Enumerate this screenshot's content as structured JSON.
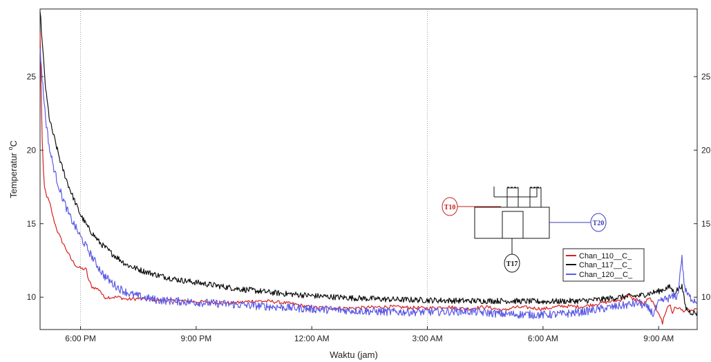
{
  "chart_data": {
    "type": "line",
    "title": "",
    "xlabel": "Waktu (jam)",
    "ylabel_text": "Temperatur",
    "ylabel_unit": "oC",
    "x_tick_labels": [
      "6:00 PM",
      "9:00 PM",
      "12:00 AM",
      "3:00 AM",
      "6:00 AM",
      "9:00 AM"
    ],
    "x_ticks_hours": [
      18,
      21,
      24,
      27,
      30,
      33
    ],
    "xlim_hours": [
      16.95,
      34.0
    ],
    "ylim": [
      7.8,
      29.6
    ],
    "y_tick_labels": [
      "10",
      "15",
      "20",
      "25"
    ],
    "y_ticks": [
      10,
      15,
      20,
      25
    ],
    "vertical_gridlines_hours": [
      18,
      27
    ],
    "legend_position": "lower-right",
    "series": [
      {
        "name": "Chan_110__C_",
        "color": "#d81e1e",
        "noise": 0.12,
        "points": [
          [
            16.95,
            28.0
          ],
          [
            17.0,
            21.0
          ],
          [
            17.05,
            17.6
          ],
          [
            17.12,
            16.9
          ],
          [
            17.2,
            16.4
          ],
          [
            17.3,
            15.3
          ],
          [
            17.4,
            14.5
          ],
          [
            17.5,
            13.9
          ],
          [
            17.6,
            13.4
          ],
          [
            17.75,
            12.6
          ],
          [
            17.9,
            12.1
          ],
          [
            18.0,
            11.95
          ],
          [
            18.15,
            11.9
          ],
          [
            18.2,
            11.2
          ],
          [
            18.3,
            10.7
          ],
          [
            18.5,
            10.5
          ],
          [
            18.6,
            10.0
          ],
          [
            19.0,
            10.0
          ],
          [
            19.2,
            9.85
          ],
          [
            19.5,
            9.9
          ],
          [
            20.0,
            9.8
          ],
          [
            21.0,
            9.7
          ],
          [
            22.0,
            9.6
          ],
          [
            22.5,
            9.75
          ],
          [
            23.0,
            9.7
          ],
          [
            23.5,
            9.55
          ],
          [
            24.0,
            9.3
          ],
          [
            25.0,
            9.25
          ],
          [
            25.5,
            9.3
          ],
          [
            26.0,
            9.35
          ],
          [
            26.5,
            9.3
          ],
          [
            27.0,
            9.25
          ],
          [
            27.5,
            9.35
          ],
          [
            28.0,
            9.2
          ],
          [
            28.5,
            9.35
          ],
          [
            29.0,
            9.1
          ],
          [
            29.2,
            9.3
          ],
          [
            29.6,
            9.3
          ],
          [
            30.0,
            9.2
          ],
          [
            30.5,
            9.4
          ],
          [
            31.0,
            9.35
          ],
          [
            31.5,
            9.6
          ],
          [
            32.0,
            9.8
          ],
          [
            32.2,
            10.2
          ],
          [
            32.3,
            9.9
          ],
          [
            32.5,
            9.8
          ],
          [
            32.6,
            9.5
          ],
          [
            32.7,
            9.8
          ],
          [
            32.8,
            9.9
          ],
          [
            32.9,
            9.3
          ],
          [
            33.0,
            9.0
          ],
          [
            33.1,
            8.2
          ],
          [
            33.15,
            8.8
          ],
          [
            33.25,
            9.4
          ],
          [
            33.3,
            9.5
          ],
          [
            33.35,
            8.9
          ],
          [
            33.4,
            9.2
          ],
          [
            33.5,
            9.3
          ],
          [
            33.6,
            9.1
          ],
          [
            34.0,
            9.1
          ]
        ]
      },
      {
        "name": "Chan_117__C_",
        "color": "#111111",
        "noise": 0.2,
        "points": [
          [
            16.95,
            29.6
          ],
          [
            17.0,
            27.5
          ],
          [
            17.1,
            24.0
          ],
          [
            17.2,
            22.0
          ],
          [
            17.35,
            20.5
          ],
          [
            17.5,
            19.0
          ],
          [
            17.7,
            17.5
          ],
          [
            17.9,
            16.2
          ],
          [
            18.0,
            15.6
          ],
          [
            18.2,
            14.7
          ],
          [
            18.5,
            13.7
          ],
          [
            18.8,
            13.0
          ],
          [
            19.2,
            12.2
          ],
          [
            19.6,
            11.8
          ],
          [
            20.0,
            11.5
          ],
          [
            20.5,
            11.2
          ],
          [
            21.0,
            11.0
          ],
          [
            22.0,
            10.6
          ],
          [
            23.0,
            10.3
          ],
          [
            24.0,
            10.1
          ],
          [
            25.0,
            9.95
          ],
          [
            26.0,
            9.85
          ],
          [
            27.0,
            9.8
          ],
          [
            28.0,
            9.75
          ],
          [
            29.0,
            9.75
          ],
          [
            30.0,
            9.7
          ],
          [
            31.0,
            9.75
          ],
          [
            31.5,
            9.85
          ],
          [
            32.0,
            10.0
          ],
          [
            32.5,
            10.1
          ],
          [
            33.0,
            10.4
          ],
          [
            33.3,
            10.7
          ],
          [
            33.4,
            10.3
          ],
          [
            33.6,
            10.8
          ],
          [
            33.7,
            9.3
          ],
          [
            33.8,
            9.0
          ],
          [
            34.0,
            8.9
          ]
        ]
      },
      {
        "name": "Chan_120__C_",
        "color": "#5a5ae6",
        "noise": 0.28,
        "points": [
          [
            16.95,
            27.0
          ],
          [
            17.0,
            25.0
          ],
          [
            17.1,
            22.0
          ],
          [
            17.2,
            20.0
          ],
          [
            17.35,
            18.3
          ],
          [
            17.5,
            17.0
          ],
          [
            17.7,
            15.6
          ],
          [
            17.9,
            14.6
          ],
          [
            18.0,
            14.1
          ],
          [
            18.2,
            13.2
          ],
          [
            18.4,
            12.3
          ],
          [
            18.6,
            11.5
          ],
          [
            18.8,
            11.0
          ],
          [
            19.0,
            10.6
          ],
          [
            19.3,
            10.2
          ],
          [
            19.6,
            10.0
          ],
          [
            20.0,
            9.8
          ],
          [
            21.0,
            9.65
          ],
          [
            22.0,
            9.5
          ],
          [
            23.0,
            9.35
          ],
          [
            24.0,
            9.2
          ],
          [
            25.0,
            9.1
          ],
          [
            26.0,
            9.0
          ],
          [
            27.0,
            9.0
          ],
          [
            28.0,
            9.05
          ],
          [
            29.0,
            8.85
          ],
          [
            30.0,
            8.8
          ],
          [
            30.5,
            8.85
          ],
          [
            31.0,
            9.0
          ],
          [
            31.5,
            9.2
          ],
          [
            32.0,
            9.4
          ],
          [
            32.5,
            9.6
          ],
          [
            32.8,
            9.1
          ],
          [
            32.85,
            8.8
          ],
          [
            33.0,
            9.6
          ],
          [
            33.2,
            9.9
          ],
          [
            33.5,
            10.1
          ],
          [
            33.55,
            11.5
          ],
          [
            33.6,
            12.8
          ],
          [
            33.65,
            11.2
          ],
          [
            33.7,
            10.4
          ],
          [
            33.8,
            10.0
          ],
          [
            34.0,
            9.7
          ]
        ]
      }
    ]
  },
  "inset_diagram": {
    "sensors": [
      {
        "label": "T10",
        "color": "#c21f1f"
      },
      {
        "label": "T17",
        "color": "#111111"
      },
      {
        "label": "T20",
        "color": "#3a3ab8"
      }
    ]
  }
}
